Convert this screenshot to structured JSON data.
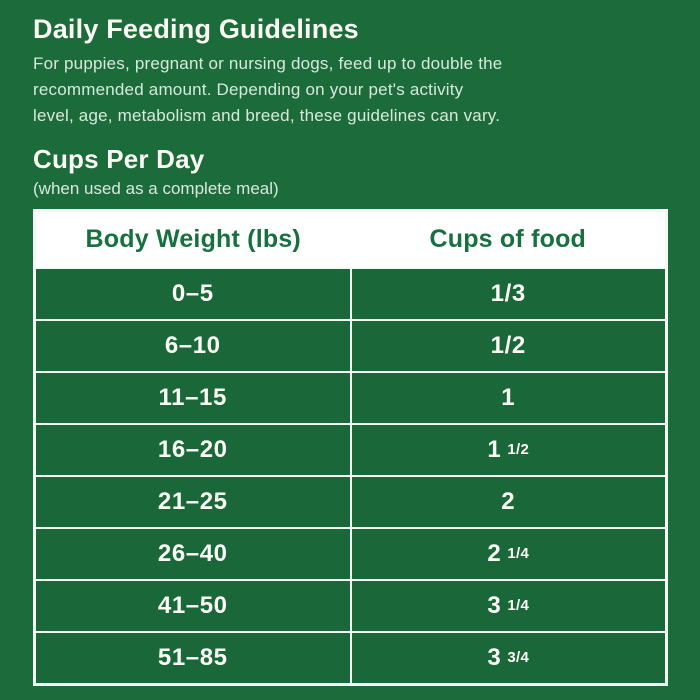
{
  "page": {
    "title": "Daily Feeding Guidelines",
    "intro_lines": [
      "For puppies, pregnant or nursing dogs, feed up to double the",
      "recommended amount. Depending on your pet's activity",
      "level, age, metabolism and breed, these guidelines can vary."
    ],
    "section_title": "Cups Per Day",
    "section_subtitle": "(when used as a complete meal)"
  },
  "table": {
    "columns": [
      "Body Weight (lbs)",
      "Cups of food"
    ],
    "rows": [
      {
        "weight": "0–5",
        "cups_main": "1/3",
        "cups_frac": ""
      },
      {
        "weight": "6–10",
        "cups_main": "1/2",
        "cups_frac": ""
      },
      {
        "weight": "11–15",
        "cups_main": "1",
        "cups_frac": ""
      },
      {
        "weight": "16–20",
        "cups_main": "1",
        "cups_frac": "1/2"
      },
      {
        "weight": "21–25",
        "cups_main": "2",
        "cups_frac": ""
      },
      {
        "weight": "26–40",
        "cups_main": "2",
        "cups_frac": "1/4"
      },
      {
        "weight": "41–50",
        "cups_main": "3",
        "cups_frac": "1/4"
      },
      {
        "weight": "51–85",
        "cups_main": "3",
        "cups_frac": "3/4"
      }
    ]
  },
  "chart_data": {
    "type": "table",
    "title": "Daily Feeding Guidelines",
    "subtitle": "Cups Per Day (when used as a complete meal)",
    "columns": [
      "Body Weight (lbs)",
      "Cups of food"
    ],
    "rows": [
      [
        "0–5",
        "1/3"
      ],
      [
        "6–10",
        "1/2"
      ],
      [
        "11–15",
        "1"
      ],
      [
        "16–20",
        "1 1/2"
      ],
      [
        "21–25",
        "2"
      ],
      [
        "26–40",
        "2 1/4"
      ],
      [
        "41–50",
        "3 1/4"
      ],
      [
        "51–85",
        "3 3/4"
      ]
    ]
  },
  "colors": {
    "background_green": "#1c6b3a",
    "cell_green": "#1a683a",
    "header_text_green": "#17703f",
    "border_white": "#f4faf5",
    "title_white": "#fbfaf3",
    "body_text": "#d8e9dc"
  }
}
